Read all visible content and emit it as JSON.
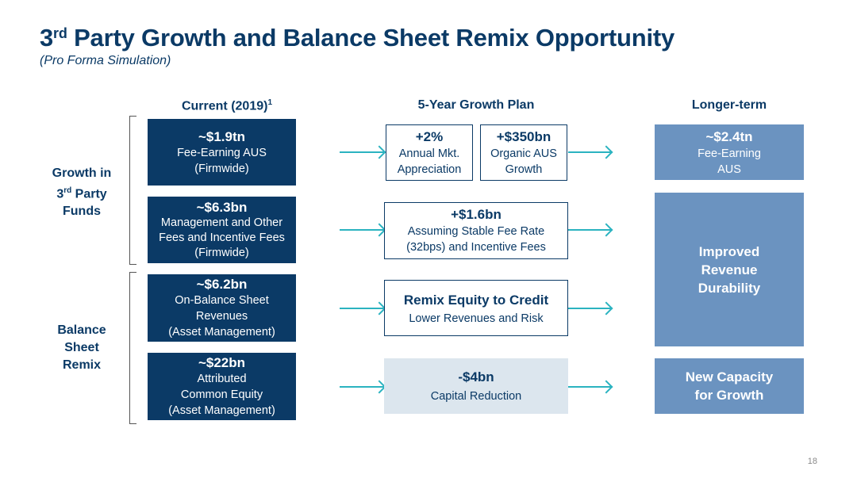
{
  "title": {
    "main": "Party Growth and Balance Sheet Remix Opportunity",
    "prefix": "3",
    "prefix_sup": "rd"
  },
  "subtitle": "(Pro Forma Simulation)",
  "columns": {
    "current": {
      "label": "Current (2019)",
      "sup": "1"
    },
    "plan": {
      "label": "5-Year Growth Plan"
    },
    "longer": {
      "label": "Longer-term"
    }
  },
  "side_labels": {
    "growth": {
      "line1": "Growth in",
      "line2_num": "3",
      "line2_sup": "rd",
      "line2_rest": " Party",
      "line3": "Funds"
    },
    "remix": {
      "line1": "Balance",
      "line2": "Sheet",
      "line3": "Remix"
    }
  },
  "current_boxes": [
    {
      "value": "~$1.9tn",
      "lines": [
        "Fee-Earning AUS",
        "(Firmwide)"
      ]
    },
    {
      "value": "~$6.3bn",
      "lines": [
        "Management and Other",
        "Fees and Incentive Fees",
        "(Firmwide)"
      ]
    },
    {
      "value": "~$6.2bn",
      "lines": [
        "On-Balance Sheet",
        "Revenues",
        "(Asset Management)"
      ]
    },
    {
      "value": "~$22bn",
      "lines": [
        "Attributed",
        "Common Equity",
        "(Asset Management)"
      ]
    }
  ],
  "plan_boxes": {
    "row1a": {
      "value": "+2%",
      "lines": [
        "Annual Mkt.",
        "Appreciation"
      ]
    },
    "row1b": {
      "value": "+$350bn",
      "lines": [
        "Organic AUS",
        "Growth"
      ]
    },
    "row2": {
      "value": "+$1.6bn",
      "lines": [
        "Assuming Stable Fee Rate",
        "(32bps) and Incentive Fees"
      ]
    },
    "row3": {
      "value": "Remix Equity to Credit",
      "lines": [
        "Lower Revenues and Risk"
      ]
    },
    "row4": {
      "value": "-$4bn",
      "lines": [
        "Capital Reduction"
      ]
    }
  },
  "longer_boxes": {
    "aus": {
      "value": "~$2.4tn",
      "lines": [
        "Fee-Earning",
        "AUS"
      ]
    },
    "durability": {
      "lines": [
        "Improved",
        "Revenue",
        "Durability"
      ]
    },
    "capacity": {
      "lines": [
        "New Capacity",
        "for Growth"
      ]
    }
  },
  "colors": {
    "navy": "#0b3a66",
    "steel": "#6b93c0",
    "light_grey": "#dce6ee",
    "arrow": "#2bb3c0"
  },
  "page_number": "18"
}
